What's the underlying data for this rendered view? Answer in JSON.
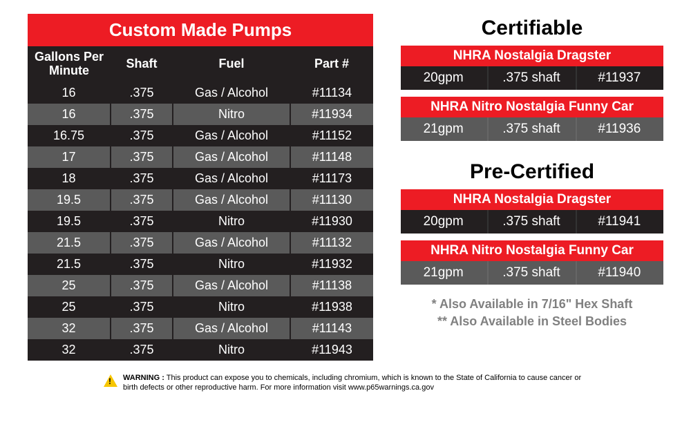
{
  "colors": {
    "red": "#ed1c24",
    "black": "#231f20",
    "grey": "#5a5a5a",
    "white": "#ffffff",
    "note_grey": "#808080",
    "warn_yellow": "#f7c600"
  },
  "pumps": {
    "title": "Custom Made Pumps",
    "columns": [
      "Gallons Per Minute",
      "Shaft",
      "Fuel",
      "Part #"
    ],
    "rows": [
      [
        "16",
        ".375",
        "Gas / Alcohol",
        "#11134"
      ],
      [
        "16",
        ".375",
        "Nitro",
        "#11934"
      ],
      [
        "16.75",
        ".375",
        "Gas / Alcohol",
        "#11152"
      ],
      [
        "17",
        ".375",
        "Gas / Alcohol",
        "#11148"
      ],
      [
        "18",
        ".375",
        "Gas / Alcohol",
        "#11173"
      ],
      [
        "19.5",
        ".375",
        "Gas / Alcohol",
        "#11130"
      ],
      [
        "19.5",
        ".375",
        "Nitro",
        "#11930"
      ],
      [
        "21.5",
        ".375",
        "Gas / Alcohol",
        "#11132"
      ],
      [
        "21.5",
        ".375",
        "Nitro",
        "#11932"
      ],
      [
        "25",
        ".375",
        "Gas / Alcohol",
        "#11138"
      ],
      [
        "25",
        ".375",
        "Nitro",
        "#11938"
      ],
      [
        "32",
        ".375",
        "Gas / Alcohol",
        "#11143"
      ],
      [
        "32",
        ".375",
        "Nitro",
        "#11943"
      ]
    ]
  },
  "certifiable": {
    "title": "Certifiable",
    "groups": [
      {
        "header": "NHRA Nostalgia Dragster",
        "cells": [
          "20gpm",
          ".375 shaft",
          "#11937"
        ],
        "shade": "dark"
      },
      {
        "header": "NHRA Nitro Nostalgia Funny Car",
        "cells": [
          "21gpm",
          ".375 shaft",
          "#11936"
        ],
        "shade": "light"
      }
    ]
  },
  "precertified": {
    "title": "Pre-Certified",
    "groups": [
      {
        "header": "NHRA Nostalgia Dragster",
        "cells": [
          "20gpm",
          ".375 shaft",
          "#11941"
        ],
        "shade": "dark"
      },
      {
        "header": "NHRA Nitro Nostalgia Funny Car",
        "cells": [
          "21gpm",
          ".375 shaft",
          "#11940"
        ],
        "shade": "light"
      }
    ]
  },
  "notes": {
    "line1": "* Also Available in 7/16\" Hex Shaft",
    "line2": "** Also Available in Steel Bodies"
  },
  "warning": {
    "label": "WARNING :",
    "text": "This product can expose you to chemicals, including chromium, which is known to the State of California to cause cancer or birth defects or other reproductive harm. For more information visit www.p65warnings.ca.gov"
  }
}
